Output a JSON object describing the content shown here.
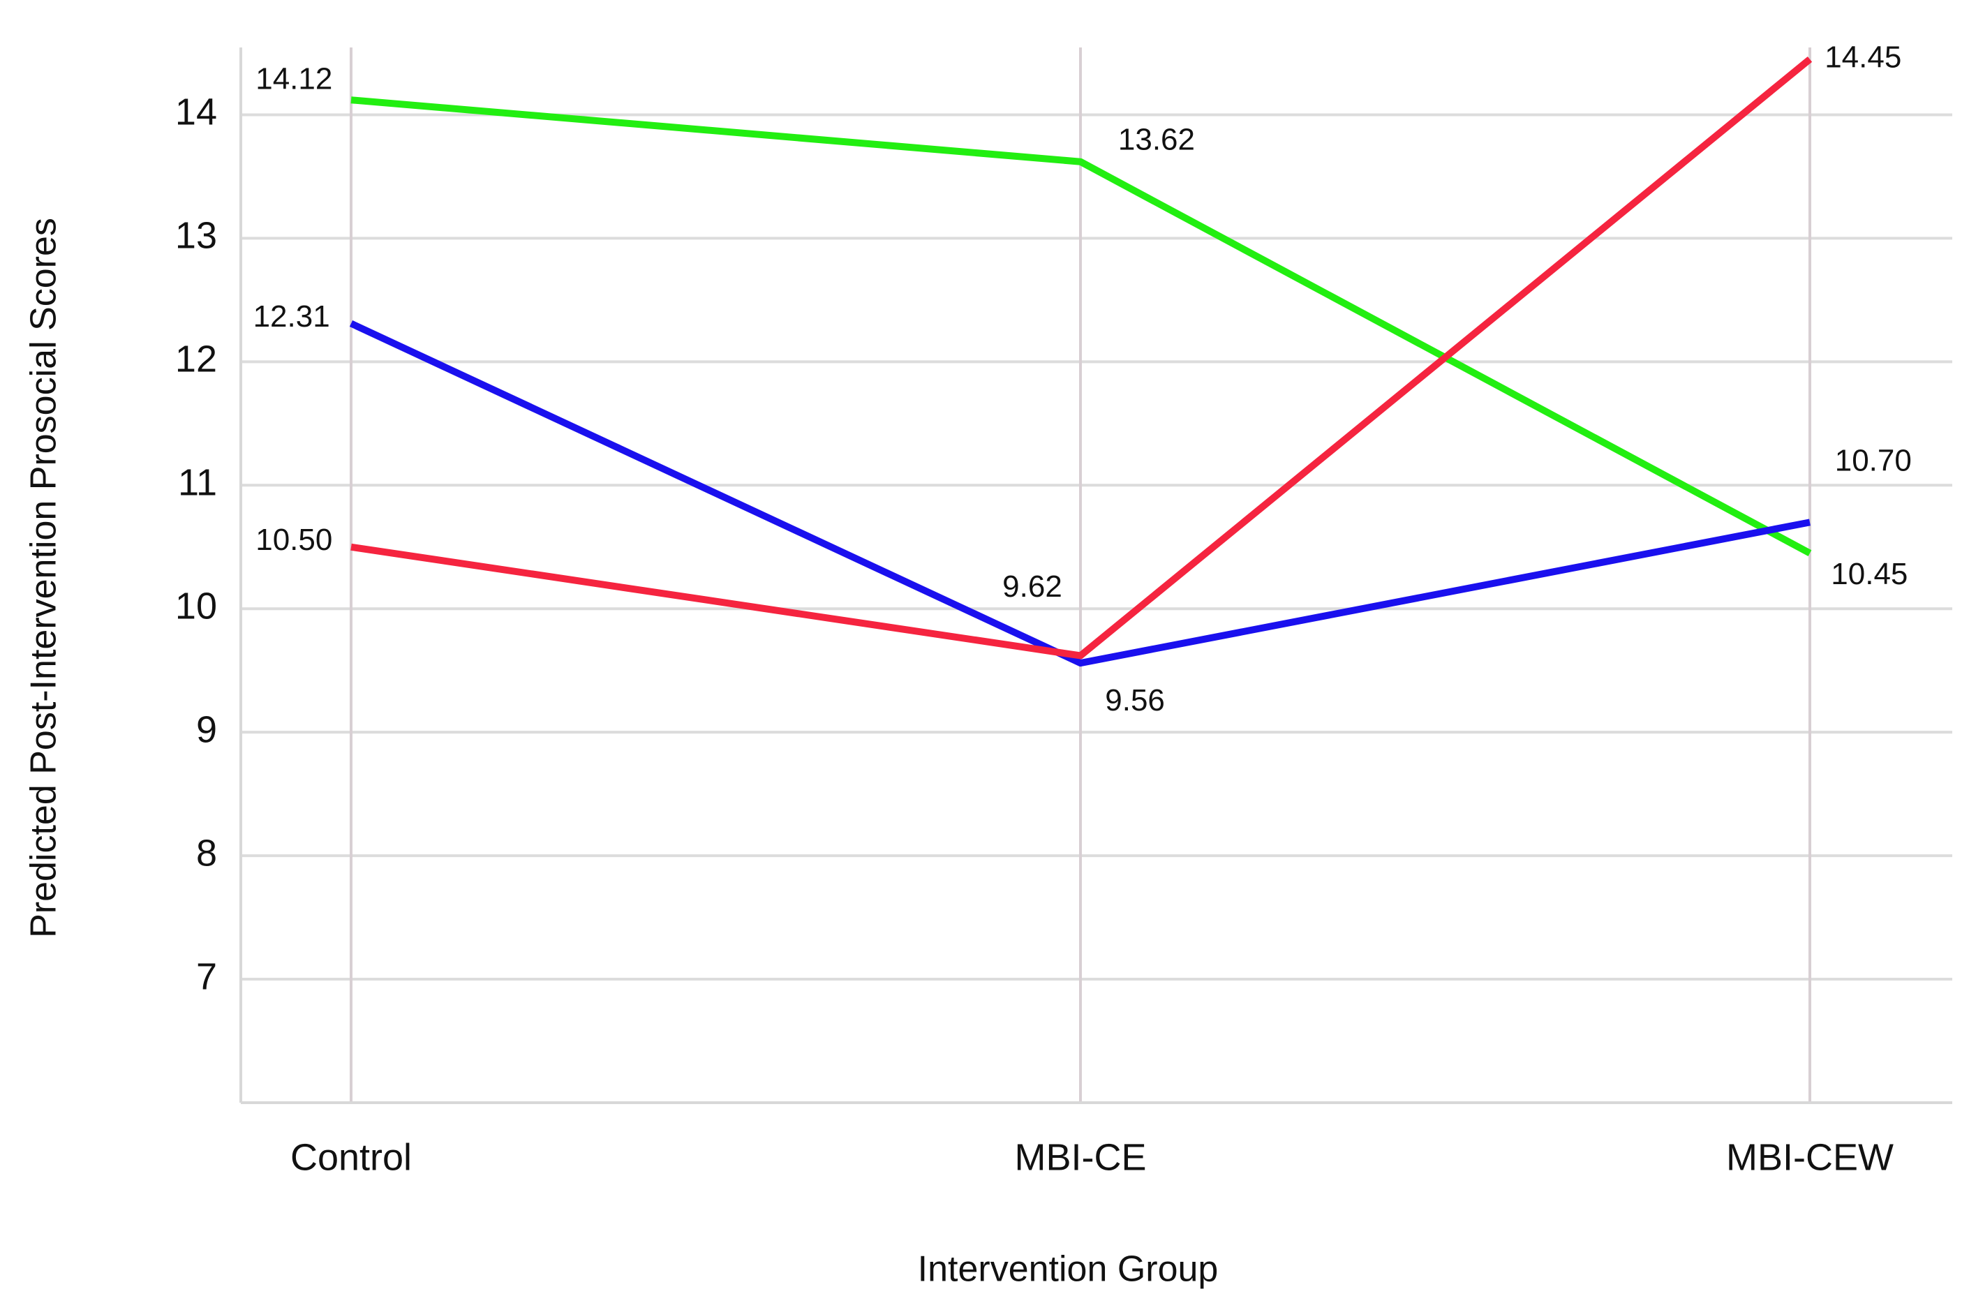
{
  "chart_data": {
    "type": "line",
    "x_label": "Intervention Group",
    "y_label": "Predicted Post-Intervention Prosocial Scores",
    "categories": [
      "Control",
      "MBI-CE",
      "MBI-CEW"
    ],
    "series": [
      {
        "color": "#22ee11",
        "values": [
          14.12,
          13.62,
          10.45
        ],
        "value_labels": [
          "14.12",
          "13.62",
          "10.45"
        ]
      },
      {
        "color": "#1a10ee",
        "values": [
          12.31,
          9.56,
          10.7
        ],
        "value_labels": [
          "12.31",
          "9.56",
          "10.70"
        ]
      },
      {
        "color": "#f5243f",
        "values": [
          10.5,
          9.62,
          14.45
        ],
        "value_labels": [
          "10.50",
          "9.62",
          "14.45"
        ]
      }
    ],
    "ylim": [
      6,
      14.5
    ],
    "yticks": [
      7,
      8,
      9,
      10,
      11,
      12,
      13,
      14
    ],
    "grid": true
  }
}
